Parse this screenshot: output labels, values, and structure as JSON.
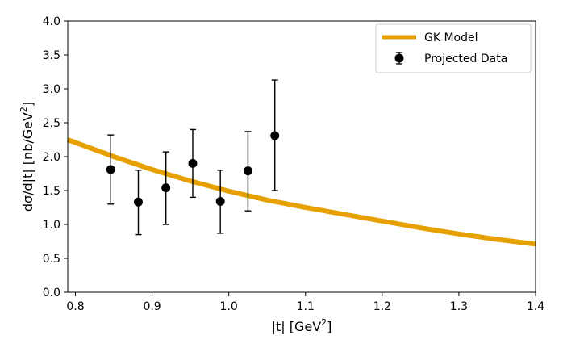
{
  "chart_data": {
    "type": "line",
    "title": "",
    "xlabel": {
      "main": "|t| [GeV",
      "sup": "2",
      "close": "]"
    },
    "ylabel": {
      "main": "dσ/d|t| [nb/GeV",
      "sup": "2",
      "close": "]"
    },
    "xlim": [
      0.79,
      1.4
    ],
    "ylim": [
      0.0,
      4.0
    ],
    "x_ticks": [
      0.8,
      0.9,
      1.0,
      1.1,
      1.2,
      1.3,
      1.4
    ],
    "x_tick_labels": [
      "0.8",
      "0.9",
      "1.0",
      "1.1",
      "1.2",
      "1.3",
      "1.4"
    ],
    "y_ticks": [
      0.0,
      0.5,
      1.0,
      1.5,
      2.0,
      2.5,
      3.0,
      3.5,
      4.0
    ],
    "y_tick_labels": [
      "0.0",
      "0.5",
      "1.0",
      "1.5",
      "2.0",
      "2.5",
      "3.0",
      "3.5",
      "4.0"
    ],
    "grid": false,
    "legend_position": "top-right",
    "model_curve": {
      "name": "GK Model",
      "color": "#e6a100",
      "x": [
        0.79,
        0.85,
        0.9,
        0.95,
        1.0,
        1.05,
        1.1,
        1.15,
        1.2,
        1.25,
        1.3,
        1.35,
        1.4
      ],
      "y": [
        2.25,
        2.0,
        1.81,
        1.64,
        1.49,
        1.36,
        1.25,
        1.15,
        1.05,
        0.95,
        0.86,
        0.78,
        0.71
      ]
    },
    "data_series": {
      "name": "Projected Data",
      "color": "#000000",
      "x": [
        0.846,
        0.882,
        0.918,
        0.953,
        0.989,
        1.025,
        1.06
      ],
      "y": [
        1.81,
        1.33,
        1.54,
        1.9,
        1.34,
        1.79,
        2.31
      ],
      "err_low": [
        1.3,
        0.85,
        1.0,
        1.4,
        0.87,
        1.2,
        1.5
      ],
      "err_high": [
        2.32,
        1.8,
        2.07,
        2.4,
        1.8,
        2.37,
        3.13
      ]
    }
  }
}
